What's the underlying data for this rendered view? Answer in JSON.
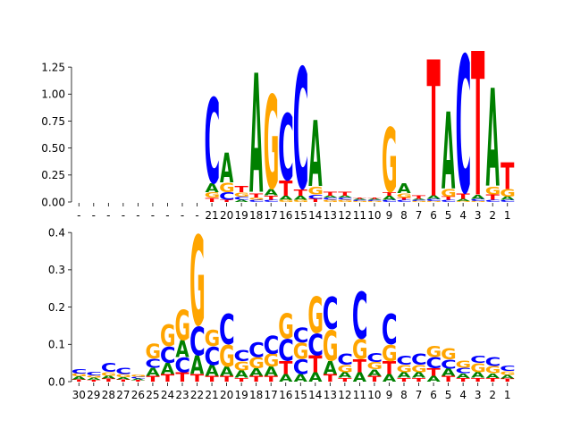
{
  "colors": {
    "A": "#008000",
    "C": "#0000ff",
    "G": "#ffa500",
    "T": "#ff0000",
    "axis": "#000000"
  },
  "chart_data": [
    {
      "type": "sequence-logo",
      "title": "",
      "xlabel": "",
      "ylabel": "",
      "ylim": [
        0,
        1.4
      ],
      "yticks": [
        0.0,
        0.25,
        0.5,
        0.75,
        1.0,
        1.25
      ],
      "ytick_labels": [
        "0.00",
        "0.25",
        "0.50",
        "0.75",
        "1.00",
        "1.25"
      ],
      "xtick_labels": [
        "-",
        "-",
        "-",
        "-",
        "-",
        "-",
        "-",
        "-",
        "-",
        "21",
        "20",
        "19",
        "18",
        "17",
        "16",
        "15",
        "14",
        "13",
        "12",
        "11",
        "10",
        "9",
        "8",
        "7",
        "6",
        "5",
        "4",
        "3",
        "2",
        "1"
      ],
      "positions": [
        [],
        [],
        [],
        [],
        [],
        [],
        [],
        [],
        [],
        [
          [
            "T",
            0.04
          ],
          [
            "G",
            0.05
          ],
          [
            "A",
            0.08
          ],
          [
            "C",
            0.82
          ]
        ],
        [
          [
            "T",
            0.02
          ],
          [
            "C",
            0.07
          ],
          [
            "G",
            0.09
          ],
          [
            "A",
            0.28
          ]
        ],
        [
          [
            "A",
            0.02
          ],
          [
            "C",
            0.03
          ],
          [
            "G",
            0.04
          ],
          [
            "T",
            0.06
          ]
        ],
        [
          [
            "C",
            0.02
          ],
          [
            "G",
            0.02
          ],
          [
            "T",
            0.04
          ],
          [
            "A",
            1.12
          ]
        ],
        [
          [
            "C",
            0.02
          ],
          [
            "T",
            0.04
          ],
          [
            "A",
            0.06
          ],
          [
            "G",
            0.9
          ]
        ],
        [
          [
            "G",
            0.02
          ],
          [
            "A",
            0.04
          ],
          [
            "T",
            0.14
          ],
          [
            "C",
            0.64
          ]
        ],
        [
          [
            "G",
            0.02
          ],
          [
            "A",
            0.04
          ],
          [
            "T",
            0.06
          ],
          [
            "C",
            1.16
          ]
        ],
        [
          [
            "T",
            0.03
          ],
          [
            "C",
            0.04
          ],
          [
            "G",
            0.07
          ],
          [
            "A",
            0.62
          ]
        ],
        [
          [
            "G",
            0.02
          ],
          [
            "C",
            0.02
          ],
          [
            "A",
            0.02
          ],
          [
            "T",
            0.04
          ]
        ],
        [
          [
            "G",
            0.02
          ],
          [
            "C",
            0.02
          ],
          [
            "A",
            0.02
          ],
          [
            "T",
            0.04
          ]
        ],
        [
          [
            "G",
            0.01
          ],
          [
            "C",
            0.01
          ],
          [
            "A",
            0.01
          ],
          [
            "T",
            0.01
          ]
        ],
        [
          [
            "G",
            0.01
          ],
          [
            "C",
            0.01
          ],
          [
            "A",
            0.01
          ],
          [
            "T",
            0.01
          ]
        ],
        [
          [
            "C",
            0.02
          ],
          [
            "A",
            0.04
          ],
          [
            "T",
            0.03
          ],
          [
            "G",
            0.62
          ]
        ],
        [
          [
            "C",
            0.02
          ],
          [
            "T",
            0.02
          ],
          [
            "G",
            0.04
          ],
          [
            "A",
            0.09
          ]
        ],
        [
          [
            "G",
            0.01
          ],
          [
            "C",
            0.01
          ],
          [
            "A",
            0.01
          ],
          [
            "T",
            0.03
          ]
        ],
        [
          [
            "G",
            0.01
          ],
          [
            "C",
            0.02
          ],
          [
            "A",
            0.03
          ],
          [
            "T",
            1.28
          ]
        ],
        [
          [
            "C",
            0.02
          ],
          [
            "T",
            0.03
          ],
          [
            "G",
            0.07
          ],
          [
            "A",
            0.72
          ]
        ],
        [
          [
            "G",
            0.01
          ],
          [
            "A",
            0.02
          ],
          [
            "T",
            0.05
          ],
          [
            "C",
            1.32
          ]
        ],
        [
          [
            "G",
            0.01
          ],
          [
            "C",
            0.02
          ],
          [
            "A",
            0.04
          ],
          [
            "T",
            1.35
          ]
        ],
        [
          [
            "C",
            0.02
          ],
          [
            "T",
            0.05
          ],
          [
            "G",
            0.07
          ],
          [
            "A",
            0.92
          ]
        ],
        [
          [
            "C",
            0.02
          ],
          [
            "A",
            0.03
          ],
          [
            "G",
            0.07
          ],
          [
            "T",
            0.25
          ]
        ]
      ]
    },
    {
      "type": "sequence-logo",
      "title": "",
      "xlabel": "",
      "ylabel": "",
      "ylim": [
        0,
        0.41
      ],
      "yticks": [
        0.0,
        0.1,
        0.2,
        0.3,
        0.4
      ],
      "ytick_labels": [
        "0.0",
        "0.1",
        "0.2",
        "0.3",
        "0.4"
      ],
      "xtick_labels": [
        "30",
        "29",
        "28",
        "27",
        "26",
        "25",
        "24",
        "23",
        "22",
        "21",
        "20",
        "19",
        "18",
        "17",
        "16",
        "15",
        "14",
        "13",
        "12",
        "11",
        "10",
        "9",
        "8",
        "7",
        "6",
        "5",
        "4",
        "3",
        "2",
        "1"
      ],
      "positions": [
        [
          [
            "T",
            0.006
          ],
          [
            "A",
            0.008
          ],
          [
            "G",
            0.008
          ],
          [
            "C",
            0.012
          ]
        ],
        [
          [
            "T",
            0.005
          ],
          [
            "A",
            0.006
          ],
          [
            "G",
            0.006
          ],
          [
            "C",
            0.01
          ]
        ],
        [
          [
            "T",
            0.008
          ],
          [
            "A",
            0.008
          ],
          [
            "G",
            0.01
          ],
          [
            "C",
            0.025
          ]
        ],
        [
          [
            "T",
            0.006
          ],
          [
            "A",
            0.006
          ],
          [
            "G",
            0.008
          ],
          [
            "C",
            0.018
          ]
        ],
        [
          [
            "T",
            0.004
          ],
          [
            "A",
            0.004
          ],
          [
            "C",
            0.005
          ],
          [
            "G",
            0.006
          ]
        ],
        [
          [
            "T",
            0.015
          ],
          [
            "A",
            0.022
          ],
          [
            "C",
            0.025
          ],
          [
            "G",
            0.04
          ]
        ],
        [
          [
            "T",
            0.02
          ],
          [
            "A",
            0.03
          ],
          [
            "C",
            0.045
          ],
          [
            "G",
            0.06
          ]
        ],
        [
          [
            "T",
            0.025
          ],
          [
            "C",
            0.04
          ],
          [
            "A",
            0.045
          ],
          [
            "G",
            0.085
          ]
        ],
        [
          [
            "T",
            0.02
          ],
          [
            "A",
            0.05
          ],
          [
            "C",
            0.08
          ],
          [
            "G",
            0.25
          ]
        ],
        [
          [
            "T",
            0.015
          ],
          [
            "A",
            0.03
          ],
          [
            "C",
            0.05
          ],
          [
            "G",
            0.045
          ]
        ],
        [
          [
            "T",
            0.015
          ],
          [
            "A",
            0.025
          ],
          [
            "G",
            0.06
          ],
          [
            "C",
            0.085
          ]
        ],
        [
          [
            "T",
            0.01
          ],
          [
            "A",
            0.02
          ],
          [
            "G",
            0.025
          ],
          [
            "C",
            0.03
          ]
        ],
        [
          [
            "T",
            0.015
          ],
          [
            "A",
            0.02
          ],
          [
            "G",
            0.03
          ],
          [
            "C",
            0.04
          ]
        ],
        [
          [
            "T",
            0.015
          ],
          [
            "A",
            0.025
          ],
          [
            "G",
            0.035
          ],
          [
            "C",
            0.05
          ]
        ],
        [
          [
            "A",
            0.02
          ],
          [
            "T",
            0.035
          ],
          [
            "C",
            0.06
          ],
          [
            "G",
            0.07
          ]
        ],
        [
          [
            "A",
            0.02
          ],
          [
            "C",
            0.04
          ],
          [
            "G",
            0.045
          ],
          [
            "C",
            0.04
          ]
        ],
        [
          [
            "A",
            0.025
          ],
          [
            "T",
            0.045
          ],
          [
            "C",
            0.06
          ],
          [
            "G",
            0.1
          ]
        ],
        [
          [
            "T",
            0.02
          ],
          [
            "A",
            0.035
          ],
          [
            "G",
            0.085
          ],
          [
            "C",
            0.09
          ]
        ],
        [
          [
            "T",
            0.01
          ],
          [
            "A",
            0.015
          ],
          [
            "G",
            0.02
          ],
          [
            "C",
            0.03
          ]
        ],
        [
          [
            "A",
            0.025
          ],
          [
            "T",
            0.035
          ],
          [
            "G",
            0.055
          ],
          [
            "C",
            0.13
          ]
        ],
        [
          [
            "T",
            0.015
          ],
          [
            "A",
            0.018
          ],
          [
            "G",
            0.02
          ],
          [
            "C",
            0.025
          ]
        ],
        [
          [
            "A",
            0.02
          ],
          [
            "T",
            0.035
          ],
          [
            "G",
            0.045
          ],
          [
            "C",
            0.085
          ]
        ],
        [
          [
            "T",
            0.01
          ],
          [
            "A",
            0.015
          ],
          [
            "G",
            0.02
          ],
          [
            "C",
            0.025
          ]
        ],
        [
          [
            "T",
            0.01
          ],
          [
            "A",
            0.015
          ],
          [
            "G",
            0.02
          ],
          [
            "C",
            0.03
          ]
        ],
        [
          [
            "A",
            0.015
          ],
          [
            "T",
            0.02
          ],
          [
            "C",
            0.03
          ],
          [
            "G",
            0.03
          ]
        ],
        [
          [
            "T",
            0.015
          ],
          [
            "A",
            0.02
          ],
          [
            "C",
            0.025
          ],
          [
            "G",
            0.03
          ]
        ],
        [
          [
            "T",
            0.01
          ],
          [
            "A",
            0.012
          ],
          [
            "C",
            0.015
          ],
          [
            "G",
            0.02
          ]
        ],
        [
          [
            "T",
            0.01
          ],
          [
            "A",
            0.015
          ],
          [
            "G",
            0.025
          ],
          [
            "C",
            0.02
          ]
        ],
        [
          [
            "T",
            0.01
          ],
          [
            "A",
            0.012
          ],
          [
            "G",
            0.02
          ],
          [
            "C",
            0.025
          ]
        ],
        [
          [
            "T",
            0.008
          ],
          [
            "A",
            0.01
          ],
          [
            "G",
            0.01
          ],
          [
            "C",
            0.015
          ]
        ]
      ]
    }
  ]
}
